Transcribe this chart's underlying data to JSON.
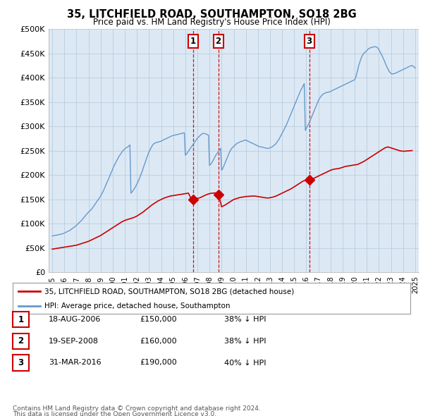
{
  "title": "35, LITCHFIELD ROAD, SOUTHAMPTON, SO18 2BG",
  "subtitle": "Price paid vs. HM Land Registry's House Price Index (HPI)",
  "ylim": [
    0,
    500000
  ],
  "yticks": [
    0,
    50000,
    100000,
    150000,
    200000,
    250000,
    300000,
    350000,
    400000,
    450000,
    500000
  ],
  "ytick_labels": [
    "£0",
    "£50K",
    "£100K",
    "£150K",
    "£200K",
    "£250K",
    "£300K",
    "£350K",
    "£400K",
    "£450K",
    "£500K"
  ],
  "background_color": "#ffffff",
  "plot_background": "#dce9f5",
  "grid_color": "#bbccdd",
  "hpi_color": "#6699cc",
  "price_color": "#cc0000",
  "transactions": [
    {
      "label": "1",
      "date_dec": 2006.63,
      "price": 150000
    },
    {
      "label": "2",
      "date_dec": 2008.72,
      "price": 160000
    },
    {
      "label": "3",
      "date_dec": 2016.25,
      "price": 190000
    }
  ],
  "legend_property_label": "35, LITCHFIELD ROAD, SOUTHAMPTON, SO18 2BG (detached house)",
  "legend_hpi_label": "HPI: Average price, detached house, Southampton",
  "footer1": "Contains HM Land Registry data © Crown copyright and database right 2024.",
  "footer2": "This data is licensed under the Open Government Licence v3.0.",
  "table_rows": [
    [
      "1",
      "18-AUG-2006",
      "£150,000",
      "38% ↓ HPI"
    ],
    [
      "2",
      "19-SEP-2008",
      "£160,000",
      "38% ↓ HPI"
    ],
    [
      "3",
      "31-MAR-2016",
      "£190,000",
      "40% ↓ HPI"
    ]
  ],
  "hpi_years": [
    1995.0,
    1995.08,
    1995.17,
    1995.25,
    1995.33,
    1995.42,
    1995.5,
    1995.58,
    1995.67,
    1995.75,
    1995.83,
    1995.92,
    1996.0,
    1996.08,
    1996.17,
    1996.25,
    1996.33,
    1996.42,
    1996.5,
    1996.58,
    1996.67,
    1996.75,
    1996.83,
    1996.92,
    1997.0,
    1997.08,
    1997.17,
    1997.25,
    1997.33,
    1997.42,
    1997.5,
    1997.58,
    1997.67,
    1997.75,
    1997.83,
    1997.92,
    1998.0,
    1998.08,
    1998.17,
    1998.25,
    1998.33,
    1998.42,
    1998.5,
    1998.58,
    1998.67,
    1998.75,
    1998.83,
    1998.92,
    1999.0,
    1999.08,
    1999.17,
    1999.25,
    1999.33,
    1999.42,
    1999.5,
    1999.58,
    1999.67,
    1999.75,
    1999.83,
    1999.92,
    2000.0,
    2000.08,
    2000.17,
    2000.25,
    2000.33,
    2000.42,
    2000.5,
    2000.58,
    2000.67,
    2000.75,
    2000.83,
    2000.92,
    2001.0,
    2001.08,
    2001.17,
    2001.25,
    2001.33,
    2001.42,
    2001.5,
    2001.58,
    2001.67,
    2001.75,
    2001.83,
    2001.92,
    2002.0,
    2002.08,
    2002.17,
    2002.25,
    2002.33,
    2002.42,
    2002.5,
    2002.58,
    2002.67,
    2002.75,
    2002.83,
    2002.92,
    2003.0,
    2003.08,
    2003.17,
    2003.25,
    2003.33,
    2003.42,
    2003.5,
    2003.58,
    2003.67,
    2003.75,
    2003.83,
    2003.92,
    2004.0,
    2004.08,
    2004.17,
    2004.25,
    2004.33,
    2004.42,
    2004.5,
    2004.58,
    2004.67,
    2004.75,
    2004.83,
    2004.92,
    2005.0,
    2005.08,
    2005.17,
    2005.25,
    2005.33,
    2005.42,
    2005.5,
    2005.58,
    2005.67,
    2005.75,
    2005.83,
    2005.92,
    2006.0,
    2006.08,
    2006.17,
    2006.25,
    2006.33,
    2006.42,
    2006.5,
    2006.58,
    2006.67,
    2006.75,
    2006.83,
    2006.92,
    2007.0,
    2007.08,
    2007.17,
    2007.25,
    2007.33,
    2007.42,
    2007.5,
    2007.58,
    2007.67,
    2007.75,
    2007.83,
    2007.92,
    2008.0,
    2008.08,
    2008.17,
    2008.25,
    2008.33,
    2008.42,
    2008.5,
    2008.58,
    2008.67,
    2008.75,
    2008.83,
    2008.92,
    2009.0,
    2009.08,
    2009.17,
    2009.25,
    2009.33,
    2009.42,
    2009.5,
    2009.58,
    2009.67,
    2009.75,
    2009.83,
    2009.92,
    2010.0,
    2010.08,
    2010.17,
    2010.25,
    2010.33,
    2010.42,
    2010.5,
    2010.58,
    2010.67,
    2010.75,
    2010.83,
    2010.92,
    2011.0,
    2011.08,
    2011.17,
    2011.25,
    2011.33,
    2011.42,
    2011.5,
    2011.58,
    2011.67,
    2011.75,
    2011.83,
    2011.92,
    2012.0,
    2012.08,
    2012.17,
    2012.25,
    2012.33,
    2012.42,
    2012.5,
    2012.58,
    2012.67,
    2012.75,
    2012.83,
    2012.92,
    2013.0,
    2013.08,
    2013.17,
    2013.25,
    2013.33,
    2013.42,
    2013.5,
    2013.58,
    2013.67,
    2013.75,
    2013.83,
    2013.92,
    2014.0,
    2014.08,
    2014.17,
    2014.25,
    2014.33,
    2014.42,
    2014.5,
    2014.58,
    2014.67,
    2014.75,
    2014.83,
    2014.92,
    2015.0,
    2015.08,
    2015.17,
    2015.25,
    2015.33,
    2015.42,
    2015.5,
    2015.58,
    2015.67,
    2015.75,
    2015.83,
    2015.92,
    2016.0,
    2016.08,
    2016.17,
    2016.25,
    2016.33,
    2016.42,
    2016.5,
    2016.58,
    2016.67,
    2016.75,
    2016.83,
    2016.92,
    2017.0,
    2017.08,
    2017.17,
    2017.25,
    2017.33,
    2017.42,
    2017.5,
    2017.58,
    2017.67,
    2017.75,
    2017.83,
    2017.92,
    2018.0,
    2018.08,
    2018.17,
    2018.25,
    2018.33,
    2018.42,
    2018.5,
    2018.58,
    2018.67,
    2018.75,
    2018.83,
    2018.92,
    2019.0,
    2019.08,
    2019.17,
    2019.25,
    2019.33,
    2019.42,
    2019.5,
    2019.58,
    2019.67,
    2019.75,
    2019.83,
    2019.92,
    2020.0,
    2020.08,
    2020.17,
    2020.25,
    2020.33,
    2020.42,
    2020.5,
    2020.58,
    2020.67,
    2020.75,
    2020.83,
    2020.92,
    2021.0,
    2021.08,
    2021.17,
    2021.25,
    2021.33,
    2021.42,
    2021.5,
    2021.58,
    2021.67,
    2021.75,
    2021.83,
    2021.92,
    2022.0,
    2022.08,
    2022.17,
    2022.25,
    2022.33,
    2022.42,
    2022.5,
    2022.58,
    2022.67,
    2022.75,
    2022.83,
    2022.92,
    2023.0,
    2023.08,
    2023.17,
    2023.25,
    2023.33,
    2023.42,
    2023.5,
    2023.58,
    2023.67,
    2023.75,
    2023.83,
    2023.92,
    2024.0,
    2024.08,
    2024.17,
    2024.25,
    2024.33,
    2024.42,
    2024.5,
    2024.58,
    2024.67,
    2024.75,
    2024.83,
    2024.92,
    2025.0
  ],
  "hpi_values": [
    75000,
    75500,
    76000,
    76200,
    76500,
    77000,
    77500,
    78000,
    78500,
    79000,
    79500,
    80000,
    81000,
    82000,
    83000,
    84000,
    85000,
    86000,
    87500,
    89000,
    90500,
    92000,
    93500,
    95000,
    97000,
    99000,
    101000,
    103000,
    105000,
    107000,
    109500,
    112000,
    114500,
    117000,
    119500,
    122000,
    124000,
    126000,
    128000,
    130000,
    133000,
    136000,
    139000,
    142000,
    145000,
    148000,
    151000,
    154000,
    157000,
    161000,
    165000,
    169000,
    174000,
    179000,
    184000,
    188000,
    193000,
    198000,
    203000,
    208000,
    213000,
    218000,
    222000,
    226000,
    230000,
    234000,
    238000,
    241000,
    244000,
    247000,
    250000,
    252000,
    254000,
    256000,
    257000,
    258000,
    260000,
    262000,
    163000,
    165000,
    168000,
    171000,
    174000,
    178000,
    182000,
    186000,
    191000,
    196000,
    201000,
    207000,
    213000,
    219000,
    225000,
    231000,
    237000,
    243000,
    248000,
    252000,
    256000,
    260000,
    263000,
    265000,
    266000,
    267000,
    267500,
    268000,
    268500,
    269000,
    270000,
    271000,
    272000,
    273000,
    274000,
    275000,
    276000,
    277000,
    278000,
    279000,
    280000,
    281000,
    281500,
    282000,
    282500,
    283000,
    283500,
    284000,
    284500,
    285000,
    285500,
    286000,
    286500,
    287000,
    241000,
    243000,
    246000,
    249000,
    252000,
    255000,
    258000,
    261000,
    264000,
    267000,
    270000,
    273000,
    276000,
    278000,
    280000,
    282000,
    284000,
    285000,
    286000,
    285500,
    285000,
    284000,
    283000,
    282000,
    220000,
    222000,
    225000,
    228000,
    232000,
    236000,
    240000,
    243000,
    246000,
    249000,
    252000,
    255000,
    210000,
    213000,
    218000,
    223000,
    228000,
    233000,
    238000,
    243000,
    248000,
    252000,
    255000,
    257000,
    259000,
    261000,
    263000,
    265000,
    266000,
    267000,
    268000,
    269000,
    269500,
    270000,
    271000,
    272000,
    272000,
    271000,
    270000,
    269000,
    268000,
    267000,
    266000,
    265000,
    264000,
    263000,
    262000,
    261000,
    260000,
    259000,
    258500,
    258000,
    257500,
    257000,
    256500,
    256000,
    255500,
    255000,
    255000,
    255500,
    256000,
    257000,
    258000,
    259500,
    261000,
    263000,
    265000,
    268000,
    271000,
    274000,
    278000,
    282000,
    286000,
    290000,
    294000,
    298000,
    302000,
    307000,
    312000,
    317000,
    322000,
    327000,
    332000,
    337000,
    342000,
    347000,
    352000,
    357000,
    362000,
    367000,
    372000,
    376000,
    380000,
    384000,
    388000,
    292000,
    296000,
    300000,
    304000,
    308000,
    313000,
    318000,
    323000,
    328000,
    333000,
    338000,
    343000,
    348000,
    353000,
    357000,
    360000,
    363000,
    365000,
    367000,
    368000,
    369000,
    370000,
    370000,
    370500,
    371000,
    372000,
    373000,
    374000,
    375000,
    376000,
    377000,
    378000,
    379000,
    380000,
    381000,
    382000,
    383000,
    384000,
    385000,
    386000,
    387000,
    388000,
    389000,
    390000,
    391000,
    392000,
    393000,
    394000,
    395000,
    396000,
    400000,
    408000,
    416000,
    425000,
    432000,
    438000,
    443000,
    447000,
    450000,
    452000,
    454000,
    456000,
    458000,
    460000,
    461000,
    462000,
    462500,
    463000,
    463500,
    464000,
    463500,
    463000,
    461000,
    458000,
    454000,
    450000,
    446000,
    442000,
    437000,
    432000,
    427000,
    422000,
    418000,
    414000,
    411000,
    409000,
    408000,
    408000,
    408500,
    409000,
    410000,
    411000,
    412000,
    413000,
    414000,
    415000,
    416000,
    417000,
    418000,
    419000,
    420000,
    421000,
    422000,
    423000,
    424000,
    425000,
    425000,
    424000,
    422000,
    420000,
    418000,
    416000,
    414000,
    413000,
    412000,
    411000,
    410000,
    410000,
    410000,
    410500,
    411000
  ],
  "price_years": [
    1995.0,
    1995.25,
    1995.5,
    1995.75,
    1996.0,
    1996.25,
    1996.5,
    1996.75,
    1997.0,
    1997.25,
    1997.5,
    1997.75,
    1998.0,
    1998.25,
    1998.5,
    1998.75,
    1999.0,
    1999.25,
    1999.5,
    1999.75,
    2000.0,
    2000.25,
    2000.5,
    2000.75,
    2001.0,
    2001.25,
    2001.5,
    2001.75,
    2002.0,
    2002.25,
    2002.5,
    2002.75,
    2003.0,
    2003.25,
    2003.5,
    2003.75,
    2004.0,
    2004.25,
    2004.5,
    2004.75,
    2005.0,
    2005.25,
    2005.5,
    2005.75,
    2006.0,
    2006.25,
    2006.5,
    2006.63,
    2006.75,
    2007.0,
    2007.25,
    2007.5,
    2007.75,
    2008.0,
    2008.25,
    2008.5,
    2008.72,
    2008.75,
    2009.0,
    2009.25,
    2009.5,
    2009.75,
    2010.0,
    2010.25,
    2010.5,
    2010.75,
    2011.0,
    2011.25,
    2011.5,
    2011.75,
    2012.0,
    2012.25,
    2012.5,
    2012.75,
    2013.0,
    2013.25,
    2013.5,
    2013.75,
    2014.0,
    2014.25,
    2014.5,
    2014.75,
    2015.0,
    2015.25,
    2015.5,
    2015.75,
    2016.0,
    2016.25,
    2016.5,
    2016.75,
    2017.0,
    2017.25,
    2017.5,
    2017.75,
    2018.0,
    2018.25,
    2018.5,
    2018.75,
    2019.0,
    2019.25,
    2019.5,
    2019.75,
    2020.0,
    2020.25,
    2020.5,
    2020.75,
    2021.0,
    2021.25,
    2021.5,
    2021.75,
    2022.0,
    2022.25,
    2022.5,
    2022.75,
    2023.0,
    2023.25,
    2023.5,
    2023.75,
    2024.0,
    2024.25,
    2024.5,
    2024.75
  ],
  "price_values": [
    48000,
    49000,
    50000,
    51000,
    52000,
    53000,
    54000,
    55000,
    56000,
    58000,
    60000,
    62000,
    64000,
    67000,
    70000,
    73000,
    76000,
    80000,
    84000,
    88000,
    92000,
    96000,
    100000,
    104000,
    107000,
    109000,
    111000,
    113000,
    116000,
    120000,
    124000,
    129000,
    134000,
    139000,
    143000,
    147000,
    150000,
    153000,
    155000,
    157000,
    158000,
    159000,
    160000,
    161000,
    162000,
    163000,
    151000,
    150000,
    151000,
    152000,
    154000,
    157000,
    160000,
    162000,
    163000,
    163500,
    160000,
    160500,
    135000,
    138000,
    142000,
    146000,
    150000,
    152000,
    154000,
    155000,
    156000,
    156500,
    157000,
    157000,
    156000,
    155000,
    154000,
    153000,
    153500,
    155000,
    157000,
    160000,
    163000,
    166000,
    169000,
    172000,
    176000,
    180000,
    184000,
    188000,
    189000,
    190000,
    192000,
    195000,
    198000,
    201000,
    204000,
    207000,
    210000,
    212000,
    213000,
    214000,
    216000,
    218000,
    219000,
    220000,
    221000,
    222000,
    225000,
    228000,
    232000,
    236000,
    240000,
    244000,
    248000,
    252000,
    256000,
    258000,
    256000,
    254000,
    252000,
    250000,
    249000,
    249500,
    250000,
    250500
  ]
}
